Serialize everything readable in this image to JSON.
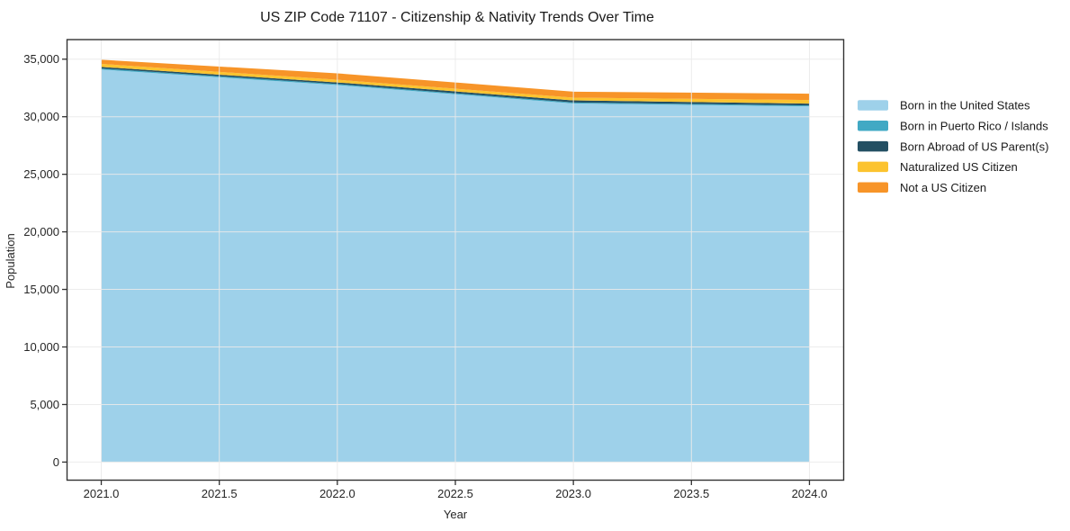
{
  "chart_data": {
    "type": "area",
    "stacked": true,
    "title": "US ZIP Code 71107 - Citizenship & Nativity Trends Over Time",
    "xlabel": "Year",
    "ylabel": "Population",
    "x": [
      2021,
      2022,
      2023,
      2024
    ],
    "series": [
      {
        "name": "Born in the United States",
        "color": "#9ed1ea",
        "values": [
          34100,
          32750,
          31150,
          30900
        ]
      },
      {
        "name": "Born in Puerto Rico / Islands",
        "color": "#41a9c4",
        "values": [
          90,
          90,
          90,
          80
        ]
      },
      {
        "name": "Born Abroad of US Parent(s)",
        "color": "#234f63",
        "values": [
          140,
          140,
          180,
          160
        ]
      },
      {
        "name": "Naturalized US Citizen",
        "color": "#fcc32f",
        "values": [
          260,
          230,
          240,
          310
        ]
      },
      {
        "name": "Not a US Citizen",
        "color": "#f79428",
        "values": [
          360,
          560,
          520,
          550
        ]
      }
    ],
    "stack_totals": [
      34950,
      33770,
      32180,
      32000
    ],
    "xticks": {
      "values": [
        2021.0,
        2021.5,
        2022.0,
        2022.5,
        2023.0,
        2023.5,
        2024.0
      ],
      "labels": [
        "2021.0",
        "2021.5",
        "2022.0",
        "2022.5",
        "2023.0",
        "2023.5",
        "2024.0"
      ]
    },
    "yticks": {
      "values": [
        0,
        5000,
        10000,
        15000,
        20000,
        25000,
        30000,
        35000
      ],
      "labels": [
        "0",
        "5,000",
        "10,000",
        "15,000",
        "20,000",
        "25,000",
        "30,000",
        "35,000"
      ]
    },
    "xlim": [
      2020.855,
      2024.145
    ],
    "ylim": [
      -1570,
      36700
    ],
    "grid": true,
    "grid_above_areas": true,
    "legend_position": "right",
    "colors": {
      "grid": "#eaeaea",
      "spine": "#333333",
      "tick": "#333333",
      "tick_text": "#262626",
      "title_text": "#1a1a1a",
      "legend_text": "#1a1a1a",
      "background": "#ffffff"
    }
  }
}
